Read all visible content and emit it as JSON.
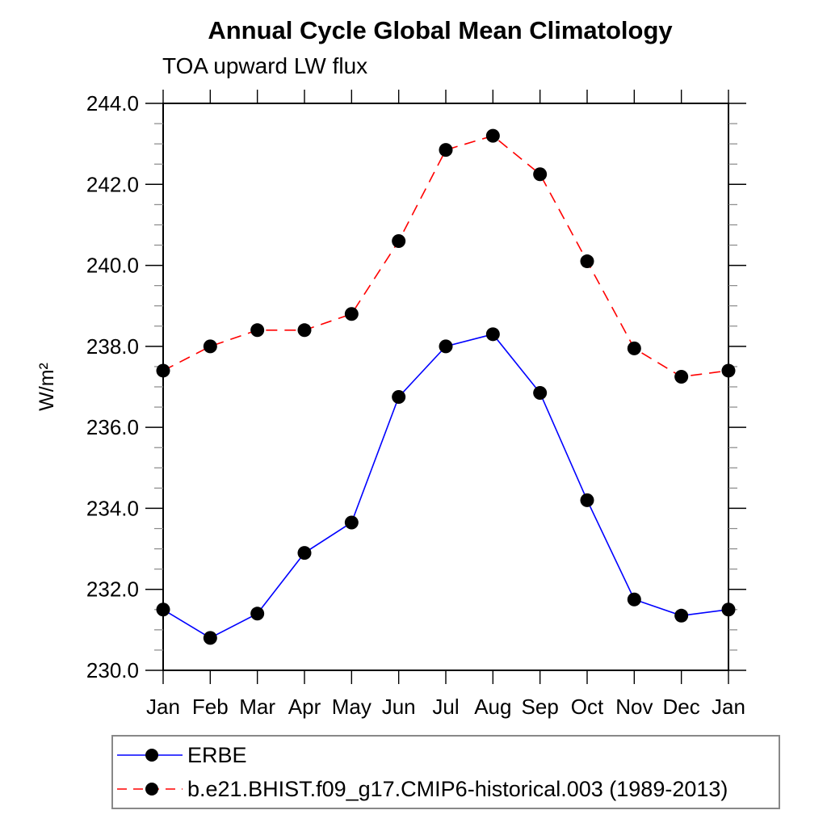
{
  "header": {
    "title": "Annual Cycle Global Mean Climatology",
    "subtitle": "TOA upward LW flux"
  },
  "chart_data": {
    "type": "line",
    "title": "Annual Cycle Global Mean Climatology",
    "subtitle": "TOA upward LW flux",
    "xlabel": "",
    "ylabel": "W/m²",
    "categories": [
      "Jan",
      "Feb",
      "Mar",
      "Apr",
      "May",
      "Jun",
      "Jul",
      "Aug",
      "Sep",
      "Oct",
      "Nov",
      "Dec",
      "Jan"
    ],
    "ylim": [
      230.0,
      244.0
    ],
    "ytick_major_step": 2.0,
    "ytick_minor_step": 0.5,
    "ytick_labels": [
      "230.0",
      "232.0",
      "234.0",
      "236.0",
      "238.0",
      "240.0",
      "242.0",
      "244.0"
    ],
    "grid": false,
    "legend_position": "bottom-left",
    "marker": {
      "shape": "circle",
      "color": "#000000",
      "radius": 8.5
    },
    "axis_color": "#000000",
    "minor_tick_color": "#888888",
    "series": [
      {
        "name": "ERBE",
        "color": "#0000ff",
        "style": "solid",
        "values": [
          231.5,
          230.8,
          231.4,
          232.9,
          233.65,
          236.75,
          238.0,
          238.3,
          236.85,
          234.2,
          231.75,
          231.35,
          231.5
        ]
      },
      {
        "name": "b.e21.BHIST.f09_g17.CMIP6-historical.003 (1989-2013)",
        "color": "#ff0000",
        "style": "dashed",
        "values": [
          237.4,
          238.0,
          238.4,
          238.4,
          238.8,
          240.6,
          242.85,
          243.2,
          242.25,
          240.1,
          237.95,
          237.25,
          237.4
        ]
      }
    ]
  }
}
